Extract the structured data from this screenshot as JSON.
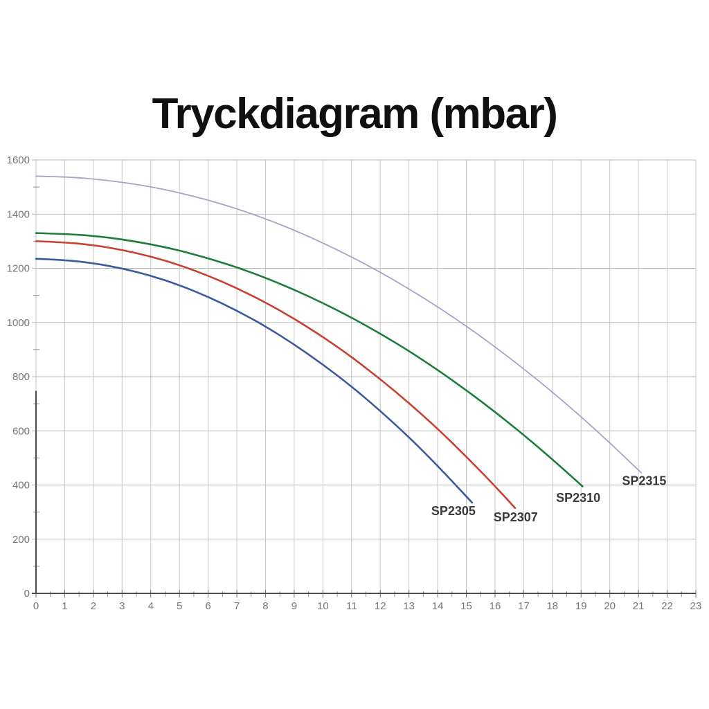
{
  "title": "Tryckdiagram (mbar)",
  "chart_data": {
    "type": "line",
    "title": "Tryckdiagram (mbar)",
    "xlabel": "",
    "ylabel": "",
    "xlim": [
      0,
      23
    ],
    "ylim": [
      0,
      1600
    ],
    "x_tick_labels": [
      "0",
      "1",
      "2",
      "3",
      "4",
      "5",
      "6",
      "7",
      "8",
      "9",
      "10",
      "11",
      "12",
      "13",
      "14",
      "15",
      "16",
      "17",
      "18",
      "19",
      "20",
      "21",
      "22",
      "23"
    ],
    "y_tick_labels": [
      "0",
      "200",
      "400",
      "600",
      "800",
      "1000",
      "1200",
      "1400",
      "1600"
    ],
    "x_major_step": 1,
    "x_minor_step": 0.5,
    "y_major_step": 200,
    "y_minor_step": 100,
    "grid": true,
    "legend_position": "end-of-line-labels",
    "tick_label_color": "#757575",
    "grid_color_vertical": "#c6c6c6",
    "grid_color_horizontal": "#b9b9b9",
    "axis_color_dark": "#4a4a4a",
    "series": [
      {
        "name": "SP2305",
        "color": "#3a5a9b",
        "stroke_width": 2.6,
        "x": [
          0,
          1,
          2,
          3,
          4,
          5,
          6,
          7,
          8,
          9,
          10,
          11,
          12,
          13,
          14,
          15,
          15.2
        ],
        "y": [
          1235,
          1231,
          1219,
          1200,
          1173,
          1138,
          1095,
          1044,
          986,
          919,
          845,
          764,
          674,
          577,
          471,
          358,
          335
        ],
        "label_pos": {
          "x": 14.55,
          "y": 289
        }
      },
      {
        "name": "SP2307",
        "color": "#c8402f",
        "stroke_width": 2.6,
        "x": [
          0,
          1,
          2,
          3,
          4,
          5,
          6,
          7,
          8,
          9,
          10,
          11,
          12,
          13,
          14,
          15,
          16,
          16.7
        ],
        "y": [
          1300,
          1296,
          1286,
          1268,
          1244,
          1212,
          1173,
          1127,
          1074,
          1014,
          947,
          873,
          791,
          703,
          608,
          505,
          396,
          315
        ],
        "label_pos": {
          "x": 16.72,
          "y": 266
        }
      },
      {
        "name": "SP2310",
        "color": "#1e7c3a",
        "stroke_width": 2.6,
        "x": [
          0,
          1,
          2,
          3,
          4,
          5,
          6,
          7,
          8,
          9,
          10,
          11,
          12,
          13,
          14,
          15,
          16,
          17,
          18,
          19,
          19.05
        ],
        "y": [
          1330,
          1327,
          1320,
          1307,
          1289,
          1266,
          1237,
          1204,
          1165,
          1121,
          1072,
          1018,
          959,
          895,
          825,
          750,
          670,
          585,
          495,
          400,
          395
        ],
        "label_pos": {
          "x": 18.9,
          "y": 338
        }
      },
      {
        "name": "SP2315",
        "color": "#a9a1c6",
        "stroke_width": 1.8,
        "x": [
          0,
          1,
          2,
          3,
          4,
          5,
          6,
          7,
          8,
          9,
          10,
          11,
          12,
          13,
          14,
          15,
          16,
          17,
          18,
          19,
          20,
          21,
          21.1
        ],
        "y": [
          1540,
          1538,
          1530,
          1518,
          1501,
          1479,
          1452,
          1420,
          1383,
          1341,
          1294,
          1242,
          1186,
          1124,
          1058,
          987,
          910,
          829,
          743,
          652,
          556,
          455,
          445
        ],
        "label_pos": {
          "x": 21.2,
          "y": 400
        }
      }
    ]
  }
}
